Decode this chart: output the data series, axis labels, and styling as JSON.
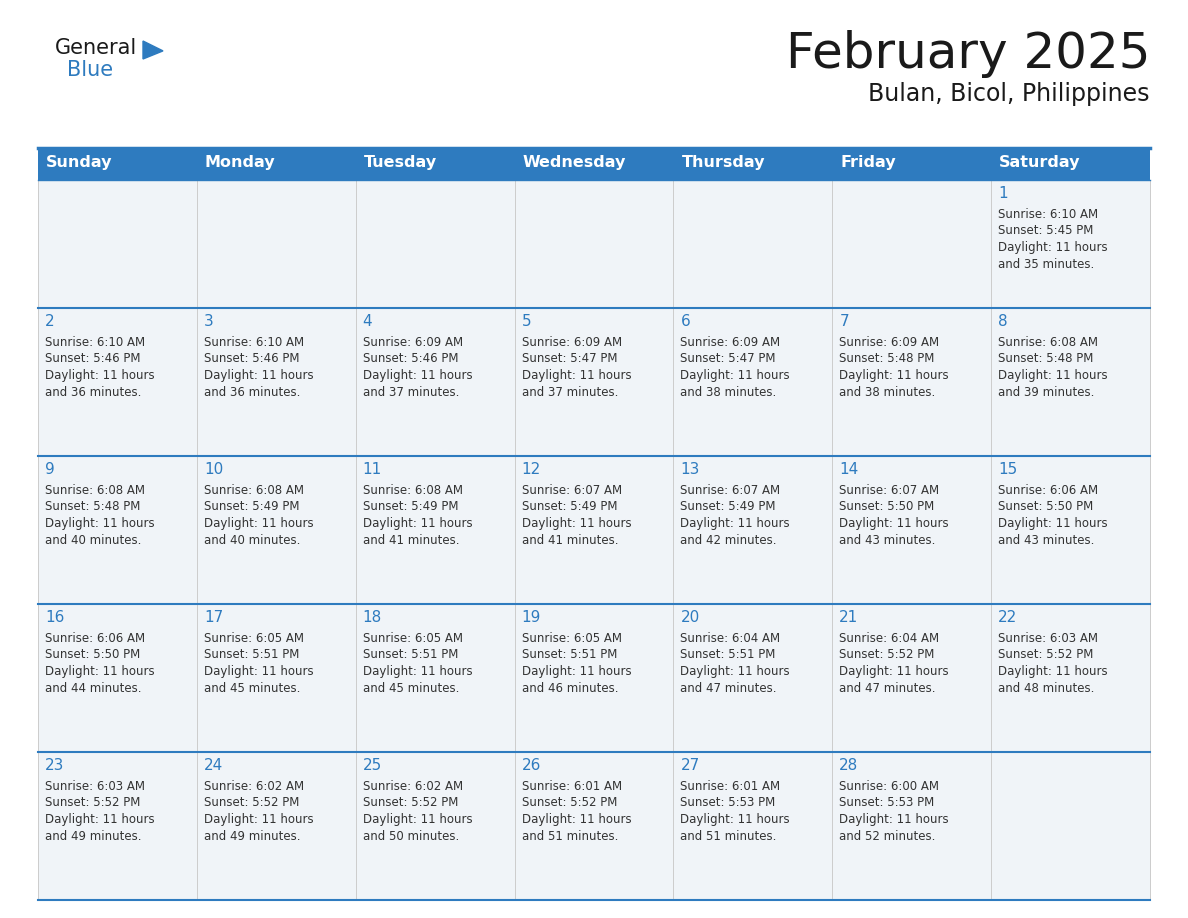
{
  "title": "February 2025",
  "subtitle": "Bulan, Bicol, Philippines",
  "days_of_week": [
    "Sunday",
    "Monday",
    "Tuesday",
    "Wednesday",
    "Thursday",
    "Friday",
    "Saturday"
  ],
  "header_bg": "#2E7BBF",
  "header_text": "#FFFFFF",
  "cell_bg": "#F0F4F8",
  "cell_bg_white": "#FFFFFF",
  "row_border_color": "#2E7BBF",
  "col_border_color": "#CCCCCC",
  "text_color": "#333333",
  "day_number_color": "#2E7BBF",
  "calendar_data": [
    [
      null,
      null,
      null,
      null,
      null,
      null,
      {
        "day": 1,
        "sunrise": "6:10 AM",
        "sunset": "5:45 PM",
        "daylight": "11 hours and 35 minutes."
      }
    ],
    [
      {
        "day": 2,
        "sunrise": "6:10 AM",
        "sunset": "5:46 PM",
        "daylight": "11 hours and 36 minutes."
      },
      {
        "day": 3,
        "sunrise": "6:10 AM",
        "sunset": "5:46 PM",
        "daylight": "11 hours and 36 minutes."
      },
      {
        "day": 4,
        "sunrise": "6:09 AM",
        "sunset": "5:46 PM",
        "daylight": "11 hours and 37 minutes."
      },
      {
        "day": 5,
        "sunrise": "6:09 AM",
        "sunset": "5:47 PM",
        "daylight": "11 hours and 37 minutes."
      },
      {
        "day": 6,
        "sunrise": "6:09 AM",
        "sunset": "5:47 PM",
        "daylight": "11 hours and 38 minutes."
      },
      {
        "day": 7,
        "sunrise": "6:09 AM",
        "sunset": "5:48 PM",
        "daylight": "11 hours and 38 minutes."
      },
      {
        "day": 8,
        "sunrise": "6:08 AM",
        "sunset": "5:48 PM",
        "daylight": "11 hours and 39 minutes."
      }
    ],
    [
      {
        "day": 9,
        "sunrise": "6:08 AM",
        "sunset": "5:48 PM",
        "daylight": "11 hours and 40 minutes."
      },
      {
        "day": 10,
        "sunrise": "6:08 AM",
        "sunset": "5:49 PM",
        "daylight": "11 hours and 40 minutes."
      },
      {
        "day": 11,
        "sunrise": "6:08 AM",
        "sunset": "5:49 PM",
        "daylight": "11 hours and 41 minutes."
      },
      {
        "day": 12,
        "sunrise": "6:07 AM",
        "sunset": "5:49 PM",
        "daylight": "11 hours and 41 minutes."
      },
      {
        "day": 13,
        "sunrise": "6:07 AM",
        "sunset": "5:49 PM",
        "daylight": "11 hours and 42 minutes."
      },
      {
        "day": 14,
        "sunrise": "6:07 AM",
        "sunset": "5:50 PM",
        "daylight": "11 hours and 43 minutes."
      },
      {
        "day": 15,
        "sunrise": "6:06 AM",
        "sunset": "5:50 PM",
        "daylight": "11 hours and 43 minutes."
      }
    ],
    [
      {
        "day": 16,
        "sunrise": "6:06 AM",
        "sunset": "5:50 PM",
        "daylight": "11 hours and 44 minutes."
      },
      {
        "day": 17,
        "sunrise": "6:05 AM",
        "sunset": "5:51 PM",
        "daylight": "11 hours and 45 minutes."
      },
      {
        "day": 18,
        "sunrise": "6:05 AM",
        "sunset": "5:51 PM",
        "daylight": "11 hours and 45 minutes."
      },
      {
        "day": 19,
        "sunrise": "6:05 AM",
        "sunset": "5:51 PM",
        "daylight": "11 hours and 46 minutes."
      },
      {
        "day": 20,
        "sunrise": "6:04 AM",
        "sunset": "5:51 PM",
        "daylight": "11 hours and 47 minutes."
      },
      {
        "day": 21,
        "sunrise": "6:04 AM",
        "sunset": "5:52 PM",
        "daylight": "11 hours and 47 minutes."
      },
      {
        "day": 22,
        "sunrise": "6:03 AM",
        "sunset": "5:52 PM",
        "daylight": "11 hours and 48 minutes."
      }
    ],
    [
      {
        "day": 23,
        "sunrise": "6:03 AM",
        "sunset": "5:52 PM",
        "daylight": "11 hours and 49 minutes."
      },
      {
        "day": 24,
        "sunrise": "6:02 AM",
        "sunset": "5:52 PM",
        "daylight": "11 hours and 49 minutes."
      },
      {
        "day": 25,
        "sunrise": "6:02 AM",
        "sunset": "5:52 PM",
        "daylight": "11 hours and 50 minutes."
      },
      {
        "day": 26,
        "sunrise": "6:01 AM",
        "sunset": "5:52 PM",
        "daylight": "11 hours and 51 minutes."
      },
      {
        "day": 27,
        "sunrise": "6:01 AM",
        "sunset": "5:53 PM",
        "daylight": "11 hours and 51 minutes."
      },
      {
        "day": 28,
        "sunrise": "6:00 AM",
        "sunset": "5:53 PM",
        "daylight": "11 hours and 52 minutes."
      },
      null
    ]
  ],
  "logo_text_general": "General",
  "logo_text_blue": "Blue",
  "logo_color_general": "#1a1a1a",
  "logo_color_blue": "#2E7BBF",
  "logo_triangle_color": "#2E7BBF",
  "fig_width": 11.88,
  "fig_height": 9.18,
  "dpi": 100
}
